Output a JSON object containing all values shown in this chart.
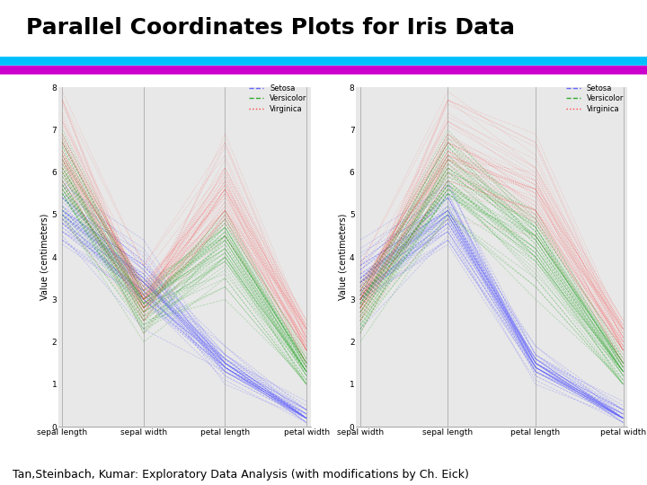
{
  "title": "Parallel Coordinates Plots for Iris Data",
  "title_fontsize": 18,
  "title_fontweight": "bold",
  "subtitle": "Tan,Steinbach, Kumar: Exploratory Data Analysis (with modifications by Ch. Eick)",
  "subtitle_fontsize": 9,
  "line1_color": "#00BFFF",
  "line2_color": "#CC00CC",
  "ylabel": "Value (centimeters)",
  "ylabel_fontsize": 7,
  "legend_labels": [
    "Setosa",
    "Versicolor",
    "Virginica"
  ],
  "legend_colors": [
    "#6666FF",
    "#33AA33",
    "#FF4444"
  ],
  "legend_linestyles": [
    "--",
    "--",
    ":"
  ],
  "plot1_axes": [
    "sepal length",
    "sepal width",
    "petal length",
    "petal width"
  ],
  "plot2_axes": [
    "sepal width",
    "sepal length",
    "petal length",
    "petal width"
  ],
  "ylim": [
    0,
    8
  ],
  "yticks": [
    0,
    1,
    2,
    3,
    4,
    5,
    6,
    7,
    8
  ],
  "alpha": 0.35,
  "linewidth": 0.5,
  "background_color": "#E8E8E8"
}
